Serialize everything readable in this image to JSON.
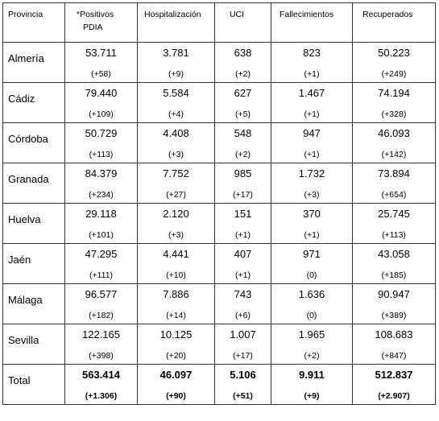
{
  "table": {
    "headers": {
      "provincia": "Provincia",
      "positivos_line1": "*Positivos",
      "positivos_line2": "PDIA",
      "hospitalizacion": "Hospitalización",
      "uci": "UCI",
      "fallecimientos": "Fallecimientos",
      "recuperados": "Recuperados"
    },
    "rows": [
      {
        "provincia": "Almería",
        "positivos": "53.711",
        "positivos_d": "(+58)",
        "hosp": "3.781",
        "hosp_d": "(+9)",
        "uci": "638",
        "uci_d": "(+2)",
        "fall": "823",
        "fall_d": "(+1)",
        "rec": "50.223",
        "rec_d": "(+249)"
      },
      {
        "provincia": "Cádiz",
        "positivos": "79.440",
        "positivos_d": "(+109)",
        "hosp": "5.584",
        "hosp_d": "(+4)",
        "uci": "627",
        "uci_d": "(+5)",
        "fall": "1.467",
        "fall_d": "(+1)",
        "rec": "74.194",
        "rec_d": "(+328)"
      },
      {
        "provincia": "Córdoba",
        "positivos": "50.729",
        "positivos_d": "(+113)",
        "hosp": "4.408",
        "hosp_d": "(+3)",
        "uci": "548",
        "uci_d": "(+2)",
        "fall": "947",
        "fall_d": "(+1)",
        "rec": "46.093",
        "rec_d": "(+142)"
      },
      {
        "provincia": "Granada",
        "positivos": "84.379",
        "positivos_d": "(+234)",
        "hosp": "7.752",
        "hosp_d": "(+27)",
        "uci": "985",
        "uci_d": "(+17)",
        "fall": "1.732",
        "fall_d": "(+3)",
        "rec": "73.894",
        "rec_d": "(+654)"
      },
      {
        "provincia": "Huelva",
        "positivos": "29.118",
        "positivos_d": "(+101)",
        "hosp": "2.120",
        "hosp_d": "(+3)",
        "uci": "151",
        "uci_d": "(+1)",
        "fall": "370",
        "fall_d": "(+1)",
        "rec": "25.745",
        "rec_d": "(+113)"
      },
      {
        "provincia": "Jaén",
        "positivos": "47.295",
        "positivos_d": "(+111)",
        "hosp": "4.441",
        "hosp_d": "(+10)",
        "uci": "407",
        "uci_d": "(+1)",
        "fall": "971",
        "fall_d": "(0)",
        "rec": "43.058",
        "rec_d": "(+185)"
      },
      {
        "provincia": "Málaga",
        "positivos": "96.577",
        "positivos_d": "(+182)",
        "hosp": "7.886",
        "hosp_d": "(+14)",
        "uci": "743",
        "uci_d": "(+6)",
        "fall": "1.636",
        "fall_d": "(0)",
        "rec": "90.947",
        "rec_d": "(+389)"
      },
      {
        "provincia": "Sevilla",
        "positivos": "122.165",
        "positivos_d": "(+398)",
        "hosp": "10.125",
        "hosp_d": "(+20)",
        "uci": "1.007",
        "uci_d": "(+17)",
        "fall": "1.965",
        "fall_d": "(+2)",
        "rec": "108.683",
        "rec_d": "(+847)"
      }
    ],
    "total": {
      "provincia": "Total",
      "positivos": "563.414",
      "positivos_d": "(+1.306)",
      "hosp": "46.097",
      "hosp_d": "(+90)",
      "uci": "5.106",
      "uci_d": "(+51)",
      "fall": "9.911",
      "fall_d": "(+9)",
      "rec": "512.837",
      "rec_d": "(+2.907)"
    }
  }
}
